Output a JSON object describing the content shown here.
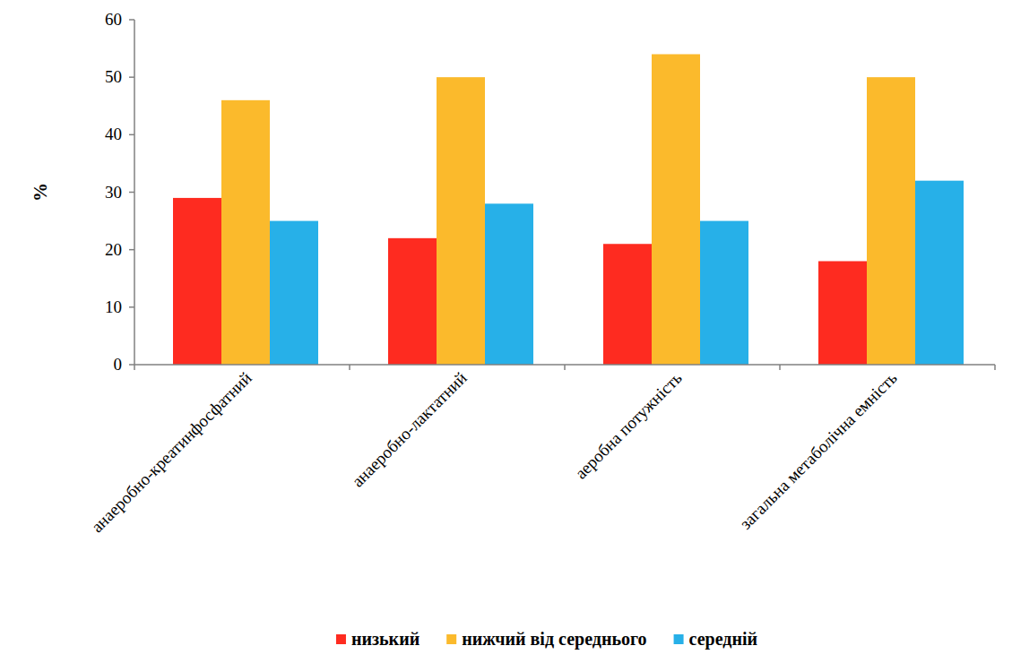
{
  "chart_data": {
    "type": "bar",
    "y_label": "%",
    "categories": [
      "анаеробно-креатинфосфатний",
      "анаеробно-лактатний",
      "аеробна потужність",
      "загальна метаболічна емність"
    ],
    "series": [
      {
        "name": "низький",
        "color": "#fe2b20",
        "values": [
          29,
          22,
          21,
          18
        ]
      },
      {
        "name": "нижчий від середнього",
        "color": "#fbba2c",
        "values": [
          46,
          50,
          54,
          50
        ]
      },
      {
        "name": "середній",
        "color": "#27b0e8",
        "values": [
          25,
          28,
          25,
          32
        ]
      }
    ],
    "ylim": [
      0,
      60
    ],
    "yticks": [
      0,
      10,
      20,
      30,
      40,
      50,
      60
    ],
    "grid": false,
    "legend": "bottom"
  }
}
